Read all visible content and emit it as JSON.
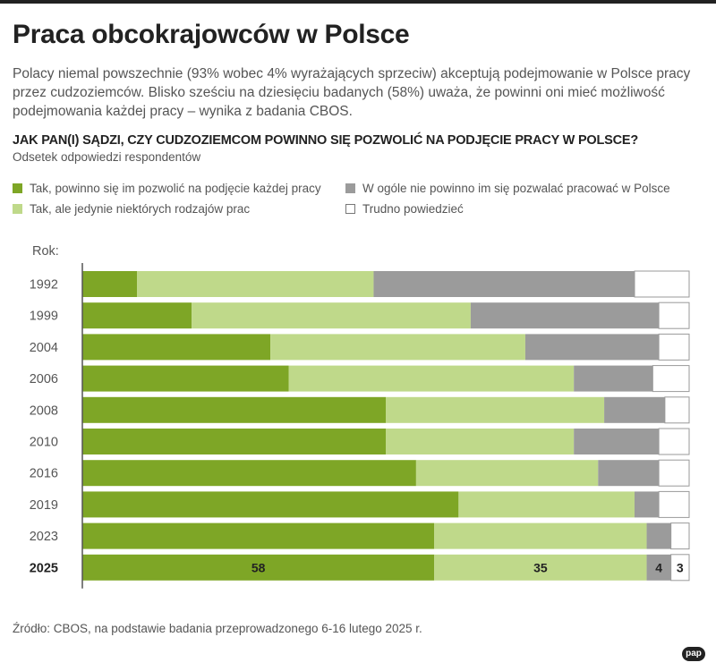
{
  "title": "Praca obcokrajowców w Polsce",
  "lead": "Polacy niemal powszechnie (93% wobec 4% wyrażających sprzeciw) akceptują podejmowanie w Polsce pracy przez cudzoziemców. Blisko sześciu na dziesięciu badanych (58%) uważa, że powinni oni mieć możliwość podejmowania każdej pracy – wynika z badania CBOS.",
  "question": "JAK PAN(I) SĄDZI, CZY CUDZOZIEMCOM POWINNO SIĘ POZWOLIĆ NA PODJĘCIE PRACY W POLSCE?",
  "subquestion": "Odsetek odpowiedzi respondentów",
  "legend": {
    "item1": "Tak, powinno się im pozwolić na podjęcie każdej pracy",
    "item2": "Tak, ale jedynie niektórych rodzajów prac",
    "item3": "W ogóle nie powinno im się pozwalać pracować w Polsce",
    "item4": "Trudno powiedzieć"
  },
  "colors": {
    "every_job": "#7ea626",
    "some_jobs": "#bfd98a",
    "none": "#9b9b9b",
    "hard_to_say": "#ffffff",
    "bar_border": "#9a9a9a"
  },
  "source": "Źródło: CBOS, na podstawie badania przeprowadzonego 6-16 lutego 2025 r.",
  "logo": "pap",
  "chart_data": {
    "type": "bar",
    "orientation": "horizontal",
    "stacked": true,
    "xlim": [
      0,
      100
    ],
    "category_axis_label": "Rok:",
    "categories": [
      "1992",
      "1999",
      "2004",
      "2006",
      "2008",
      "2010",
      "2016",
      "2019",
      "2023",
      "2025"
    ],
    "series": [
      {
        "name": "Tak, powinno się im pozwolić na podjęcie każdej pracy",
        "color": "#7ea626",
        "values": [
          9,
          18,
          31,
          34,
          50,
          50,
          55,
          62,
          58,
          58
        ]
      },
      {
        "name": "Tak, ale jedynie niektórych rodzajów prac",
        "color": "#bfd98a",
        "values": [
          39,
          46,
          42,
          47,
          36,
          31,
          30,
          29,
          35,
          35
        ]
      },
      {
        "name": "W ogóle nie powinno im się pozwalać pracować w Polsce",
        "color": "#9b9b9b",
        "values": [
          43,
          31,
          22,
          13,
          10,
          14,
          10,
          4,
          4,
          4
        ]
      },
      {
        "name": "Trudno powiedzieć",
        "color": "#ffffff",
        "values": [
          9,
          5,
          5,
          6,
          4,
          5,
          5,
          5,
          3,
          3
        ]
      }
    ],
    "data_labels": {
      "category": "2025",
      "values": [
        "58",
        "35",
        "4",
        "3"
      ]
    },
    "highlight_category": "2025"
  }
}
